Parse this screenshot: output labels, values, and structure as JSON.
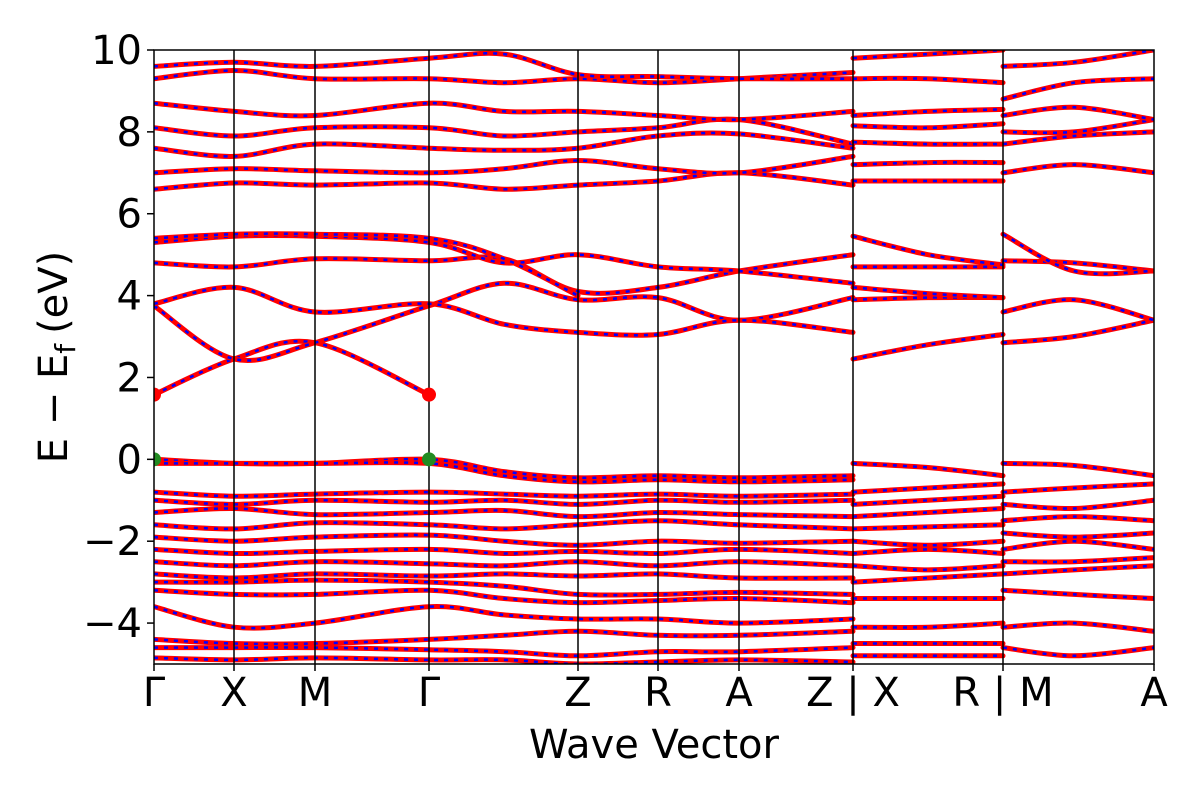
{
  "chart_data": {
    "type": "line",
    "xlabel": "Wave Vector",
    "ylabel": "E − E",
    "ylabel_sub": "f",
    "ylabel_unit": "(eV)",
    "ylim": [
      -5,
      10
    ],
    "yticks": [
      -4,
      -2,
      0,
      2,
      4,
      6,
      8,
      10
    ],
    "ytick_labels": [
      "−4",
      "−2",
      "0",
      "2",
      "4",
      "6",
      "8",
      "10"
    ],
    "xlim": [
      0,
      1
    ],
    "kpoints": [
      {
        "label": "Γ",
        "x": 0.0
      },
      {
        "label": "X",
        "x": 0.08
      },
      {
        "label": "M",
        "x": 0.161
      },
      {
        "label": "Γ",
        "x": 0.275
      },
      {
        "label": "Z",
        "x": 0.424
      },
      {
        "label": "R",
        "x": 0.504
      },
      {
        "label": "A",
        "x": 0.585
      },
      {
        "label": "Z | X",
        "x": 0.699
      },
      {
        "label": "R | M",
        "x": 0.849
      },
      {
        "label": "A",
        "x": 1.0
      }
    ],
    "series_style": {
      "outer_color": "#ff0000",
      "inner_color": "#0000ff",
      "inner_dashed": true
    },
    "markers": [
      {
        "x": 0.0,
        "y": 1.58,
        "color": "#ff0000"
      },
      {
        "x": 0.275,
        "y": 1.58,
        "color": "#ff0000"
      },
      {
        "x": 0.0,
        "y": 0.0,
        "color": "#228b22"
      },
      {
        "x": 0.275,
        "y": 0.0,
        "color": "#228b22"
      }
    ],
    "bands": [
      {
        "x": [
          0,
          0.08,
          0.161,
          0.275
        ],
        "y": [
          1.58,
          2.45,
          2.85,
          1.58
        ]
      },
      {
        "x": [
          0,
          0.08,
          0.161,
          0.275,
          0.35,
          0.424,
          0.504,
          0.585,
          0.699
        ],
        "y": [
          3.75,
          2.45,
          2.85,
          3.75,
          4.3,
          3.9,
          3.95,
          3.4,
          3.95
        ]
      },
      {
        "x": [
          0,
          0.08,
          0.161,
          0.275,
          0.35,
          0.424,
          0.504,
          0.585,
          0.699
        ],
        "y": [
          3.8,
          4.2,
          3.6,
          3.8,
          3.3,
          3.1,
          3.05,
          3.4,
          3.1
        ]
      },
      {
        "x": [
          0,
          0.08,
          0.161,
          0.275,
          0.35,
          0.424,
          0.504,
          0.585,
          0.699
        ],
        "y": [
          4.8,
          4.7,
          4.9,
          4.85,
          4.9,
          4.1,
          4.2,
          4.6,
          5.0
        ]
      },
      {
        "x": [
          0,
          0.08,
          0.161,
          0.275,
          0.35,
          0.424,
          0.504,
          0.585,
          0.699
        ],
        "y": [
          5.3,
          5.45,
          5.45,
          5.3,
          4.8,
          5.0,
          4.7,
          4.6,
          4.3
        ]
      },
      {
        "x": [
          0,
          0.08,
          0.161,
          0.275,
          0.35,
          0.424
        ],
        "y": [
          5.4,
          5.5,
          5.5,
          5.4,
          4.9,
          4.0
        ]
      },
      {
        "x": [
          0,
          0.08,
          0.161,
          0.275,
          0.35,
          0.424,
          0.504,
          0.585,
          0.699
        ],
        "y": [
          6.6,
          6.75,
          6.7,
          6.75,
          6.6,
          6.7,
          6.8,
          7.0,
          6.7
        ]
      },
      {
        "x": [
          0,
          0.08,
          0.161,
          0.275,
          0.35,
          0.424,
          0.504,
          0.585,
          0.699
        ],
        "y": [
          7.0,
          7.1,
          7.05,
          7.0,
          7.1,
          7.3,
          7.1,
          7.0,
          7.4
        ]
      },
      {
        "x": [
          0,
          0.08,
          0.161,
          0.275,
          0.35,
          0.424,
          0.504,
          0.585,
          0.699
        ],
        "y": [
          7.6,
          7.4,
          7.7,
          7.6,
          7.55,
          7.6,
          7.9,
          7.95,
          7.6
        ]
      },
      {
        "x": [
          0,
          0.08,
          0.161,
          0.275,
          0.35,
          0.424,
          0.504,
          0.585,
          0.699
        ],
        "y": [
          8.1,
          7.9,
          8.1,
          8.1,
          7.9,
          8.0,
          8.1,
          8.3,
          7.7
        ]
      },
      {
        "x": [
          0,
          0.08,
          0.161,
          0.275,
          0.35,
          0.424,
          0.504,
          0.585,
          0.699
        ],
        "y": [
          8.7,
          8.5,
          8.4,
          8.7,
          8.5,
          8.5,
          8.4,
          8.3,
          8.5
        ]
      },
      {
        "x": [
          0,
          0.08,
          0.161,
          0.275,
          0.35,
          0.424,
          0.504,
          0.585,
          0.699
        ],
        "y": [
          9.3,
          9.5,
          9.3,
          9.3,
          9.2,
          9.3,
          9.2,
          9.3,
          9.45
        ]
      },
      {
        "x": [
          0,
          0.08,
          0.161,
          0.275,
          0.35,
          0.424,
          0.504,
          0.585,
          0.699
        ],
        "y": [
          9.6,
          9.7,
          9.6,
          9.8,
          9.9,
          9.4,
          9.35,
          9.3,
          9.3
        ]
      },
      {
        "x": [
          0,
          0.08,
          0.161,
          0.275,
          0.35,
          0.424,
          0.504,
          0.585,
          0.699
        ],
        "y": [
          0.0,
          -0.1,
          -0.1,
          0.0,
          -0.3,
          -0.45,
          -0.4,
          -0.45,
          -0.4
        ]
      },
      {
        "x": [
          0,
          0.08,
          0.161,
          0.275,
          0.35,
          0.424,
          0.504,
          0.585,
          0.699
        ],
        "y": [
          -0.1,
          -0.1,
          -0.1,
          -0.1,
          -0.4,
          -0.55,
          -0.5,
          -0.55,
          -0.5
        ]
      },
      {
        "x": [
          0,
          0.08,
          0.161,
          0.275,
          0.35,
          0.424,
          0.504,
          0.585,
          0.699
        ],
        "y": [
          -0.8,
          -0.9,
          -0.85,
          -0.8,
          -0.85,
          -0.9,
          -0.85,
          -0.9,
          -0.85
        ]
      },
      {
        "x": [
          0,
          0.08,
          0.161,
          0.275,
          0.35,
          0.424,
          0.504,
          0.585,
          0.699
        ],
        "y": [
          -1.0,
          -1.1,
          -1.0,
          -1.05,
          -1.0,
          -1.1,
          -1.0,
          -1.05,
          -1.0
        ]
      },
      {
        "x": [
          0,
          0.08,
          0.161,
          0.275,
          0.35,
          0.424,
          0.504,
          0.585,
          0.699
        ],
        "y": [
          -1.3,
          -1.2,
          -1.35,
          -1.3,
          -1.25,
          -1.4,
          -1.3,
          -1.35,
          -1.4
        ]
      },
      {
        "x": [
          0,
          0.08,
          0.161,
          0.275,
          0.35,
          0.424,
          0.504,
          0.585,
          0.699
        ],
        "y": [
          -1.6,
          -1.7,
          -1.55,
          -1.6,
          -1.7,
          -1.6,
          -1.5,
          -1.6,
          -1.7
        ]
      },
      {
        "x": [
          0,
          0.08,
          0.161,
          0.275,
          0.35,
          0.424,
          0.504,
          0.585,
          0.699
        ],
        "y": [
          -1.9,
          -2.0,
          -1.9,
          -1.85,
          -2.0,
          -2.1,
          -2.0,
          -2.05,
          -2.0
        ]
      },
      {
        "x": [
          0,
          0.08,
          0.161,
          0.275,
          0.35,
          0.424,
          0.504,
          0.585,
          0.699
        ],
        "y": [
          -2.2,
          -2.3,
          -2.25,
          -2.2,
          -2.3,
          -2.25,
          -2.3,
          -2.2,
          -2.3
        ]
      },
      {
        "x": [
          0,
          0.08,
          0.161,
          0.275,
          0.35,
          0.424,
          0.504,
          0.585,
          0.699
        ],
        "y": [
          -2.5,
          -2.6,
          -2.5,
          -2.55,
          -2.6,
          -2.5,
          -2.6,
          -2.5,
          -2.6
        ]
      },
      {
        "x": [
          0,
          0.08,
          0.161,
          0.275,
          0.35,
          0.424,
          0.504,
          0.585,
          0.699
        ],
        "y": [
          -2.8,
          -2.9,
          -2.8,
          -2.85,
          -2.8,
          -2.85,
          -2.8,
          -2.9,
          -2.9
        ]
      },
      {
        "x": [
          0,
          0.08,
          0.161,
          0.275,
          0.35,
          0.424,
          0.504,
          0.585,
          0.699
        ],
        "y": [
          -3.0,
          -3.0,
          -2.95,
          -3.0,
          -3.1,
          -3.3,
          -3.3,
          -3.25,
          -3.3
        ]
      },
      {
        "x": [
          0,
          0.08,
          0.161,
          0.275,
          0.35,
          0.424,
          0.504,
          0.585,
          0.699
        ],
        "y": [
          -3.2,
          -3.3,
          -3.3,
          -3.2,
          -3.4,
          -3.5,
          -3.45,
          -3.4,
          -3.5
        ]
      },
      {
        "x": [
          0,
          0.08,
          0.161,
          0.275,
          0.35,
          0.424,
          0.504,
          0.585,
          0.699
        ],
        "y": [
          -3.6,
          -4.1,
          -4.0,
          -3.6,
          -3.8,
          -3.9,
          -3.9,
          -4.0,
          -3.9
        ]
      },
      {
        "x": [
          0,
          0.08,
          0.161,
          0.275,
          0.35,
          0.424,
          0.504,
          0.585,
          0.699
        ],
        "y": [
          -4.4,
          -4.5,
          -4.5,
          -4.4,
          -4.3,
          -4.2,
          -4.3,
          -4.3,
          -4.2
        ]
      },
      {
        "x": [
          0,
          0.08,
          0.161,
          0.275,
          0.35,
          0.424,
          0.504,
          0.585,
          0.699
        ],
        "y": [
          -4.6,
          -4.6,
          -4.6,
          -4.65,
          -4.7,
          -4.8,
          -4.7,
          -4.7,
          -4.6
        ]
      },
      {
        "x": [
          0,
          0.08,
          0.161,
          0.275,
          0.35,
          0.424,
          0.504,
          0.585,
          0.699
        ],
        "y": [
          -4.85,
          -4.9,
          -4.85,
          -4.9,
          -4.9,
          -5.0,
          -4.95,
          -4.9,
          -4.95
        ]
      },
      {
        "x": [
          0.699,
          0.774,
          0.849
        ],
        "y": [
          2.45,
          2.8,
          3.05
        ]
      },
      {
        "x": [
          0.699,
          0.774,
          0.849
        ],
        "y": [
          3.9,
          3.95,
          3.95
        ]
      },
      {
        "x": [
          0.699,
          0.774,
          0.849
        ],
        "y": [
          4.2,
          4.05,
          3.95
        ]
      },
      {
        "x": [
          0.699,
          0.774,
          0.849
        ],
        "y": [
          4.7,
          4.7,
          4.7
        ]
      },
      {
        "x": [
          0.699,
          0.774,
          0.849
        ],
        "y": [
          5.45,
          5.0,
          4.75
        ]
      },
      {
        "x": [
          0.699,
          0.774,
          0.849
        ],
        "y": [
          6.8,
          6.8,
          6.8
        ]
      },
      {
        "x": [
          0.699,
          0.774,
          0.849
        ],
        "y": [
          7.2,
          7.25,
          7.25
        ]
      },
      {
        "x": [
          0.699,
          0.774,
          0.849
        ],
        "y": [
          7.75,
          7.7,
          7.7
        ]
      },
      {
        "x": [
          0.699,
          0.774,
          0.849
        ],
        "y": [
          8.15,
          8.1,
          8.2
        ]
      },
      {
        "x": [
          0.699,
          0.774,
          0.849
        ],
        "y": [
          8.4,
          8.5,
          8.55
        ]
      },
      {
        "x": [
          0.699,
          0.774,
          0.849
        ],
        "y": [
          9.3,
          9.3,
          9.2
        ]
      },
      {
        "x": [
          0.699,
          0.774,
          0.849
        ],
        "y": [
          9.8,
          9.9,
          10.0
        ]
      },
      {
        "x": [
          0.699,
          0.774,
          0.849
        ],
        "y": [
          -0.1,
          -0.2,
          -0.4
        ]
      },
      {
        "x": [
          0.699,
          0.774,
          0.849
        ],
        "y": [
          -0.8,
          -0.7,
          -0.6
        ]
      },
      {
        "x": [
          0.699,
          0.774,
          0.849
        ],
        "y": [
          -1.1,
          -1.0,
          -0.9
        ]
      },
      {
        "x": [
          0.699,
          0.774,
          0.849
        ],
        "y": [
          -1.4,
          -1.3,
          -1.2
        ]
      },
      {
        "x": [
          0.699,
          0.774,
          0.849
        ],
        "y": [
          -1.7,
          -1.65,
          -1.6
        ]
      },
      {
        "x": [
          0.699,
          0.774,
          0.849
        ],
        "y": [
          -2.0,
          -2.1,
          -2.0
        ]
      },
      {
        "x": [
          0.699,
          0.774,
          0.849
        ],
        "y": [
          -2.3,
          -2.2,
          -2.3
        ]
      },
      {
        "x": [
          0.699,
          0.774,
          0.849
        ],
        "y": [
          -2.6,
          -2.7,
          -2.6
        ]
      },
      {
        "x": [
          0.699,
          0.774,
          0.849
        ],
        "y": [
          -3.0,
          -2.9,
          -2.8
        ]
      },
      {
        "x": [
          0.699,
          0.774,
          0.849
        ],
        "y": [
          -3.4,
          -3.4,
          -3.4
        ]
      },
      {
        "x": [
          0.699,
          0.774,
          0.849
        ],
        "y": [
          -4.1,
          -4.1,
          -4.0
        ]
      },
      {
        "x": [
          0.699,
          0.774,
          0.849
        ],
        "y": [
          -4.5,
          -4.5,
          -4.5
        ]
      },
      {
        "x": [
          0.699,
          0.774,
          0.849
        ],
        "y": [
          -4.8,
          -4.8,
          -4.8
        ]
      },
      {
        "x": [
          0.849,
          0.92,
          1.0
        ],
        "y": [
          2.85,
          3.0,
          3.4
        ]
      },
      {
        "x": [
          0.849,
          0.92,
          1.0
        ],
        "y": [
          3.6,
          3.9,
          3.4
        ]
      },
      {
        "x": [
          0.849,
          0.92,
          1.0
        ],
        "y": [
          4.85,
          4.8,
          4.6
        ]
      },
      {
        "x": [
          0.849,
          0.92,
          1.0
        ],
        "y": [
          5.5,
          4.6,
          4.6
        ]
      },
      {
        "x": [
          0.849,
          0.92,
          1.0
        ],
        "y": [
          7.0,
          7.2,
          7.0
        ]
      },
      {
        "x": [
          0.849,
          0.92,
          1.0
        ],
        "y": [
          7.7,
          7.9,
          8.0
        ]
      },
      {
        "x": [
          0.849,
          0.92,
          1.0
        ],
        "y": [
          8.0,
          8.0,
          8.3
        ]
      },
      {
        "x": [
          0.849,
          0.92,
          1.0
        ],
        "y": [
          8.4,
          8.6,
          8.3
        ]
      },
      {
        "x": [
          0.849,
          0.92,
          1.0
        ],
        "y": [
          8.8,
          9.2,
          9.3
        ]
      },
      {
        "x": [
          0.849,
          0.92,
          1.0
        ],
        "y": [
          9.6,
          9.7,
          10.0
        ]
      },
      {
        "x": [
          0.849,
          0.92,
          1.0
        ],
        "y": [
          -0.1,
          -0.15,
          -0.4
        ]
      },
      {
        "x": [
          0.849,
          0.92,
          1.0
        ],
        "y": [
          -0.8,
          -0.7,
          -0.6
        ]
      },
      {
        "x": [
          0.849,
          0.92,
          1.0
        ],
        "y": [
          -1.1,
          -1.2,
          -1.0
        ]
      },
      {
        "x": [
          0.849,
          0.92,
          1.0
        ],
        "y": [
          -1.5,
          -1.4,
          -1.5
        ]
      },
      {
        "x": [
          0.849,
          0.92,
          1.0
        ],
        "y": [
          -1.8,
          -1.9,
          -1.8
        ]
      },
      {
        "x": [
          0.849,
          0.92,
          1.0
        ],
        "y": [
          -2.2,
          -2.0,
          -2.2
        ]
      },
      {
        "x": [
          0.849,
          0.92,
          1.0
        ],
        "y": [
          -2.5,
          -2.5,
          -2.4
        ]
      },
      {
        "x": [
          0.849,
          0.92,
          1.0
        ],
        "y": [
          -2.8,
          -2.7,
          -2.6
        ]
      },
      {
        "x": [
          0.849,
          0.92,
          1.0
        ],
        "y": [
          -3.2,
          -3.3,
          -3.4
        ]
      },
      {
        "x": [
          0.849,
          0.92,
          1.0
        ],
        "y": [
          -4.1,
          -4.0,
          -4.2
        ]
      },
      {
        "x": [
          0.849,
          0.92,
          1.0
        ],
        "y": [
          -4.6,
          -4.8,
          -4.6
        ]
      }
    ]
  }
}
